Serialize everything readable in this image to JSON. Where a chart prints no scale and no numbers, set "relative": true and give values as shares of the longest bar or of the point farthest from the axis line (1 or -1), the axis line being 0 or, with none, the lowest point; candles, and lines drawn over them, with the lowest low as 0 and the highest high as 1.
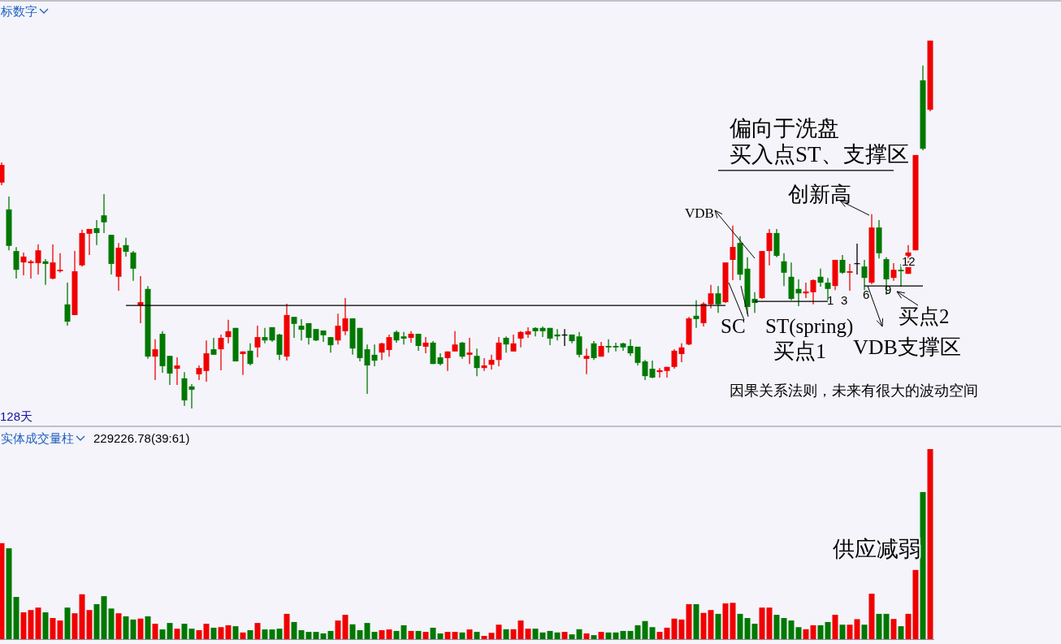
{
  "chart_data": [
    {
      "type": "candlestick",
      "relative": true,
      "title": "标数字",
      "annotations": [
        "偏向于洗盘",
        "买入点ST、支撑区",
        "创新高",
        "VDB",
        "SC",
        "ST(spring)",
        "买点1",
        "VDB支撑区",
        "买点2",
        "1",
        "3",
        "6",
        "9",
        "12",
        "因果关系法则，未来有很大的波动空间",
        "128天"
      ],
      "categories": [
        null,
        null,
        null,
        null,
        null,
        null,
        null,
        null,
        null,
        null,
        null,
        null,
        null,
        null,
        null,
        null,
        null,
        null,
        null,
        null,
        null,
        null,
        null,
        null,
        null,
        null,
        null,
        null,
        null,
        null,
        null,
        null,
        null,
        null,
        null,
        null,
        null,
        null,
        null,
        null,
        null,
        null,
        null,
        null,
        null,
        null,
        null,
        null,
        null,
        null,
        null,
        null,
        null,
        null,
        null,
        null,
        null,
        null,
        null,
        null,
        null,
        null,
        null,
        null,
        null,
        null,
        null,
        null,
        null,
        null,
        null,
        null,
        null,
        null,
        null,
        null,
        null,
        null,
        null,
        null,
        null,
        null,
        null,
        null,
        null,
        null,
        null,
        null,
        null,
        null,
        null,
        null,
        null,
        null,
        null,
        null,
        null,
        null,
        null,
        null,
        null,
        null,
        null,
        null,
        null,
        null,
        null,
        null,
        null,
        null,
        null,
        null,
        null,
        null,
        null,
        null,
        null,
        null,
        null,
        null,
        null,
        null,
        null,
        null,
        null,
        null,
        null,
        null
      ],
      "ohlc": [
        [
          0.614,
          0.669,
          0.607,
          0.662
        ],
        [
          0.541,
          0.576,
          0.43,
          0.442
        ],
        [
          0.428,
          0.439,
          0.353,
          0.377
        ],
        [
          0.397,
          0.424,
          0.362,
          0.413
        ],
        [
          0.395,
          0.404,
          0.353,
          0.4
        ],
        [
          0.395,
          0.446,
          0.364,
          0.43
        ],
        [
          0.4,
          0.406,
          0.336,
          0.393
        ],
        [
          0.353,
          0.446,
          0.351,
          0.397
        ],
        [
          0.373,
          0.422,
          0.369,
          0.377
        ],
        [
          0.283,
          0.342,
          0.225,
          0.236
        ],
        [
          0.254,
          0.428,
          0.254,
          0.373
        ],
        [
          0.389,
          0.486,
          0.386,
          0.477
        ],
        [
          0.475,
          0.488,
          0.417,
          0.488
        ],
        [
          0.49,
          0.512,
          0.444,
          0.477
        ],
        [
          0.525,
          0.583,
          0.477,
          0.506
        ],
        [
          0.472,
          0.472,
          0.364,
          0.393
        ],
        [
          0.358,
          0.45,
          0.32,
          0.437
        ],
        [
          0.444,
          0.464,
          0.413,
          0.426
        ],
        [
          0.424,
          0.428,
          0.347,
          0.38
        ],
        [
          0.28,
          0.36,
          0.232,
          0.289
        ],
        [
          0.325,
          0.333,
          0.135,
          0.141
        ],
        [
          0.141,
          0.188,
          0.077,
          0.161
        ],
        [
          0.203,
          0.21,
          0.097,
          0.115
        ],
        [
          0.143,
          0.143,
          0.064,
          0.095
        ],
        [
          0.108,
          0.139,
          0.064,
          0.117
        ],
        [
          0.082,
          0.099,
          0.007,
          0.022
        ],
        [
          0.06,
          0.066,
          0,
          0.051
        ],
        [
          0.093,
          0.117,
          0.077,
          0.11
        ],
        [
          0.102,
          0.185,
          0.073,
          0.15
        ],
        [
          0.161,
          0.192,
          0.146,
          0.146
        ],
        [
          0.161,
          0.201,
          0.104,
          0.192
        ],
        [
          0.194,
          0.241,
          0.177,
          0.21
        ],
        [
          0.219,
          0.219,
          0.128,
          0.128
        ],
        [
          0.148,
          0.155,
          0.091,
          0.155
        ],
        [
          0.157,
          0.177,
          0.117,
          0.121
        ],
        [
          0.166,
          0.225,
          0.139,
          0.194
        ],
        [
          0.194,
          0.219,
          0.177,
          0.185
        ],
        [
          0.221,
          0.221,
          0.181,
          0.185
        ],
        [
          0.201,
          0.203,
          0.132,
          0.146
        ],
        [
          0.141,
          0.285,
          0.13,
          0.254
        ],
        [
          0.249,
          0.249,
          0.192,
          0.23
        ],
        [
          0.225,
          0.243,
          0.185,
          0.214
        ],
        [
          0.232,
          0.232,
          0.174,
          0.192
        ],
        [
          0.216,
          0.216,
          0.183,
          0.185
        ],
        [
          0.212,
          0.212,
          0.181,
          0.199
        ],
        [
          0.194,
          0.194,
          0.152,
          0.172
        ],
        [
          0.185,
          0.258,
          0.174,
          0.225
        ],
        [
          0.21,
          0.3,
          0.199,
          0.245
        ],
        [
          0.245,
          0.245,
          0.146,
          0.163
        ],
        [
          0.219,
          0.219,
          0.128,
          0.137
        ],
        [
          0.161,
          0.174,
          0.04,
          0.117
        ],
        [
          0.146,
          0.174,
          0.115,
          0.13
        ],
        [
          0.152,
          0.179,
          0.132,
          0.177
        ],
        [
          0.159,
          0.201,
          0.141,
          0.194
        ],
        [
          0.208,
          0.212,
          0.179,
          0.185
        ],
        [
          0.196,
          0.208,
          0.174,
          0.19
        ],
        [
          0.192,
          0.21,
          0.179,
          0.203
        ],
        [
          0.203,
          0.203,
          0.157,
          0.17
        ],
        [
          0.168,
          0.194,
          0.15,
          0.179
        ],
        [
          0.179,
          0.183,
          0.121,
          0.121
        ],
        [
          0.139,
          0.15,
          0.117,
          0.121
        ],
        [
          0.137,
          0.155,
          0.102,
          0.155
        ],
        [
          0.155,
          0.21,
          0.155,
          0.174
        ],
        [
          0.179,
          0.181,
          0.135,
          0.141
        ],
        [
          0.146,
          0.192,
          0.121,
          0.152
        ],
        [
          0.143,
          0.163,
          0.088,
          0.11
        ],
        [
          0.11,
          0.137,
          0.102,
          0.117
        ],
        [
          0.119,
          0.146,
          0.106,
          0.132
        ],
        [
          0.132,
          0.194,
          0.115,
          0.179
        ],
        [
          0.192,
          0.196,
          0.152,
          0.174
        ],
        [
          0.155,
          0.201,
          0.155,
          0.177
        ],
        [
          0.19,
          0.21,
          0.166,
          0.208
        ],
        [
          0.201,
          0.221,
          0.192,
          0.21
        ],
        [
          0.219,
          0.221,
          0.196,
          0.21
        ],
        [
          0.219,
          0.223,
          0.194,
          0.21
        ],
        [
          0.219,
          0.219,
          0.172,
          0.19
        ],
        [
          0.201,
          0.216,
          0.185,
          0.196
        ],
        [
          0.201,
          0.216,
          0.17,
          0.201
        ],
        [
          0.201,
          0.201,
          0.177,
          0.183
        ],
        [
          0.196,
          0.208,
          0.139,
          0.146
        ],
        [
          0.135,
          0.163,
          0.093,
          0.143
        ],
        [
          0.177,
          0.183,
          0.132,
          0.137
        ],
        [
          0.141,
          0.181,
          0.141,
          0.17
        ],
        [
          0.17,
          0.188,
          0.152,
          0.166
        ],
        [
          0.17,
          0.179,
          0.155,
          0.166
        ],
        [
          0.177,
          0.179,
          0.157,
          0.166
        ],
        [
          0.17,
          0.188,
          0.143,
          0.15
        ],
        [
          0.168,
          0.168,
          0.117,
          0.124
        ],
        [
          0.128,
          0.132,
          0.077,
          0.088
        ],
        [
          0.108,
          0.13,
          0.082,
          0.084
        ],
        [
          0.099,
          0.11,
          0.084,
          0.104
        ],
        [
          0.102,
          0.113,
          0.084,
          0.113
        ],
        [
          0.113,
          0.161,
          0.108,
          0.157
        ],
        [
          0.148,
          0.177,
          0.126,
          0.166
        ],
        [
          0.174,
          0.249,
          0.172,
          0.245
        ],
        [
          0.252,
          0.294,
          0.219,
          0.243
        ],
        [
          0.232,
          0.289,
          0.223,
          0.285
        ],
        [
          0.283,
          0.336,
          0.272,
          0.313
        ],
        [
          0.313,
          0.333,
          0.26,
          0.283
        ],
        [
          0.289,
          0.397,
          0.287,
          0.397
        ],
        [
          0.404,
          0.497,
          0.349,
          0.439
        ],
        [
          0.45,
          0.468,
          0.349,
          0.364
        ],
        [
          0.38,
          0.411,
          0.256,
          0.276
        ],
        [
          0.298,
          0.316,
          0.26,
          0.287
        ],
        [
          0.3,
          0.428,
          0.298,
          0.428
        ],
        [
          0.428,
          0.488,
          0.389,
          0.477
        ],
        [
          0.477,
          0.488,
          0.411,
          0.415
        ],
        [
          0.4,
          0.422,
          0.333,
          0.369
        ],
        [
          0.358,
          0.397,
          0.294,
          0.298
        ],
        [
          0.325,
          0.351,
          0.278,
          0.313
        ],
        [
          0.313,
          0.342,
          0.3,
          0.318
        ],
        [
          0.316,
          0.351,
          0.283,
          0.349
        ],
        [
          0.358,
          0.38,
          0.331,
          0.342
        ],
        [
          0.342,
          0.355,
          0.294,
          0.325
        ],
        [
          0.333,
          0.404,
          0.322,
          0.404
        ],
        [
          0.404,
          0.417,
          0.366,
          0.369
        ],
        [
          0.369,
          0.393,
          0.32,
          0.373
        ],
        [
          0.395,
          0.448,
          0.364,
          0.395
        ],
        [
          0.386,
          0.404,
          0.322,
          0.355
        ],
        [
          0.342,
          0.528,
          0.338,
          0.492
        ],
        [
          0.492,
          0.512,
          0.408,
          0.422
        ],
        [
          0.406,
          0.411,
          0.309,
          0.351
        ],
        [
          0.355,
          0.395,
          0.347,
          0.377
        ],
        [
          0.377,
          0.393,
          0.331,
          0.373
        ],
        [
          0.366,
          0.444,
          0.366,
          0.424
        ],
        [
          0.43,
          0.689,
          0.43,
          0.689
        ],
        [
          0.892,
          0.932,
          0.702,
          0.706
        ],
        [
          0.812,
          1,
          0.808,
          1
        ]
      ],
      "series": [
        {
          "type": "line",
          "color": "#000000",
          "values": [
            null,
            null,
            null,
            null,
            null,
            null,
            null,
            null,
            null,
            null,
            null,
            null,
            null,
            null,
            null,
            null,
            null,
            0.28,
            0.28,
            0.28,
            0.28,
            0.28,
            0.28,
            0.28,
            0.28,
            0.28,
            0.28,
            0.28,
            0.28,
            0.28,
            0.28,
            0.28,
            0.28,
            0.28,
            0.28,
            0.28,
            0.28,
            0.28,
            0.28,
            0.28,
            0.28,
            0.28,
            0.28,
            0.28,
            0.28,
            0.28,
            0.28,
            0.28,
            0.28,
            0.28,
            0.28,
            0.28,
            0.28,
            0.28,
            0.28,
            0.28,
            0.28,
            0.28,
            0.28,
            0.28,
            0.28,
            0.28,
            0.28,
            0.28,
            0.28,
            0.28,
            0.28,
            0.28,
            0.28,
            0.28,
            0.28,
            0.28,
            0.28,
            0.28,
            0.28,
            0.28,
            0.28,
            0.28,
            0.28,
            0.28,
            0.28,
            0.28,
            0.28,
            0.28,
            0.28,
            0.28,
            0.28,
            0.28,
            0.28,
            0.28,
            0.28,
            0.28,
            0.28,
            0.28,
            0.28,
            0.28,
            0.28,
            0.28,
            0.28,
            0.28,
            null,
            null,
            null,
            null,
            null,
            null,
            null,
            null,
            null,
            null,
            null,
            null,
            null,
            null,
            null,
            null,
            null,
            null,
            null,
            null,
            null,
            null,
            null,
            null,
            null,
            null,
            null,
            null
          ]
        },
        {
          "type": "line",
          "color": "#000000",
          "values": [
            null,
            null,
            null,
            null,
            null,
            null,
            null,
            null,
            null,
            null,
            null,
            null,
            null,
            null,
            null,
            null,
            null,
            null,
            null,
            null,
            null,
            null,
            null,
            null,
            null,
            null,
            null,
            null,
            null,
            null,
            null,
            null,
            null,
            null,
            null,
            null,
            null,
            null,
            null,
            null,
            null,
            null,
            null,
            null,
            null,
            null,
            null,
            null,
            null,
            null,
            null,
            null,
            null,
            null,
            null,
            null,
            null,
            null,
            null,
            null,
            null,
            null,
            null,
            null,
            null,
            null,
            null,
            null,
            null,
            null,
            null,
            null,
            null,
            null,
            null,
            null,
            null,
            null,
            null,
            null,
            null,
            null,
            null,
            null,
            null,
            null,
            null,
            null,
            null,
            null,
            null,
            null,
            null,
            null,
            null,
            null,
            null,
            null,
            0.647,
            0.647,
            0.647,
            0.647,
            0.647,
            0.647,
            0.647,
            0.647,
            0.647,
            0.647,
            0.647,
            0.647,
            0.647,
            0.647,
            0.647,
            0.647,
            0.647,
            0.647,
            0.647,
            0.647,
            0.647,
            0.647,
            0.647,
            0.647,
            0.647,
            null,
            null,
            null,
            null,
            null
          ]
        },
        {
          "type": "line",
          "color": "#000000",
          "values": [
            null,
            null,
            null,
            null,
            null,
            null,
            null,
            null,
            null,
            null,
            null,
            null,
            null,
            null,
            null,
            null,
            null,
            null,
            null,
            null,
            null,
            null,
            null,
            null,
            null,
            null,
            null,
            null,
            null,
            null,
            null,
            null,
            null,
            null,
            null,
            null,
            null,
            null,
            null,
            null,
            null,
            null,
            null,
            null,
            null,
            null,
            null,
            null,
            null,
            null,
            null,
            null,
            null,
            null,
            null,
            null,
            null,
            null,
            null,
            null,
            null,
            null,
            null,
            null,
            null,
            null,
            null,
            null,
            null,
            null,
            null,
            null,
            null,
            null,
            null,
            null,
            null,
            null,
            null,
            null,
            null,
            null,
            null,
            null,
            null,
            null,
            null,
            null,
            null,
            null,
            null,
            null,
            null,
            null,
            null,
            null,
            null,
            null,
            null,
            null,
            null,
            null,
            null,
            0.291,
            0.291,
            0.291,
            0.291,
            0.291,
            0.291,
            0.291,
            0.291,
            0.291,
            0.291,
            0.291,
            null,
            null,
            null,
            null,
            null,
            null,
            null,
            null,
            null,
            null,
            null,
            null,
            null,
            null
          ]
        },
        {
          "type": "line",
          "color": "#000000",
          "values": [
            null,
            null,
            null,
            null,
            null,
            null,
            null,
            null,
            null,
            null,
            null,
            null,
            null,
            null,
            null,
            null,
            null,
            null,
            null,
            null,
            null,
            null,
            null,
            null,
            null,
            null,
            null,
            null,
            null,
            null,
            null,
            null,
            null,
            null,
            null,
            null,
            null,
            null,
            null,
            null,
            null,
            null,
            null,
            null,
            null,
            null,
            null,
            null,
            null,
            null,
            null,
            null,
            null,
            null,
            null,
            null,
            null,
            null,
            null,
            null,
            null,
            null,
            null,
            null,
            null,
            null,
            null,
            null,
            null,
            null,
            null,
            null,
            null,
            null,
            null,
            null,
            null,
            null,
            null,
            null,
            null,
            null,
            null,
            null,
            null,
            null,
            null,
            null,
            null,
            null,
            null,
            null,
            null,
            null,
            null,
            null,
            null,
            null,
            null,
            null,
            null,
            null,
            null,
            null,
            null,
            null,
            null,
            null,
            null,
            null,
            null,
            null,
            null,
            null,
            null,
            null,
            null,
            null,
            0.333,
            0.333,
            0.333,
            0.333,
            0.333,
            0.333,
            0.333,
            0.333,
            0.333,
            null
          ]
        }
      ]
    },
    {
      "type": "bar",
      "relative": true,
      "title": "实体成交量柱",
      "subtitle": "229226.78(39:61)",
      "annotations": [
        "供应减弱"
      ],
      "categories": [
        null,
        null,
        null,
        null,
        null,
        null,
        null,
        null,
        null,
        null,
        null,
        null,
        null,
        null,
        null,
        null,
        null,
        null,
        null,
        null,
        null,
        null,
        null,
        null,
        null,
        null,
        null,
        null,
        null,
        null,
        null,
        null,
        null,
        null,
        null,
        null,
        null,
        null,
        null,
        null,
        null,
        null,
        null,
        null,
        null,
        null,
        null,
        null,
        null,
        null,
        null,
        null,
        null,
        null,
        null,
        null,
        null,
        null,
        null,
        null,
        null,
        null,
        null,
        null,
        null,
        null,
        null,
        null,
        null,
        null,
        null,
        null,
        null,
        null,
        null,
        null,
        null,
        null,
        null,
        null,
        null,
        null,
        null,
        null,
        null,
        null,
        null,
        null,
        null,
        null,
        null,
        null,
        null,
        null,
        null,
        null,
        null,
        null,
        null,
        null,
        null,
        null,
        null,
        null,
        null,
        null,
        null,
        null,
        null,
        null,
        null,
        null,
        null,
        null,
        null,
        null,
        null,
        null,
        null,
        null,
        null,
        null,
        null,
        null,
        null,
        null,
        null,
        null
      ],
      "values": [
        0.505,
        0.478,
        0.222,
        0.141,
        0.153,
        0.166,
        0.141,
        0.111,
        0.098,
        0.166,
        0.136,
        0.236,
        0.153,
        0.184,
        0.226,
        0.161,
        0.136,
        0.12,
        0.103,
        0.108,
        0.12,
        0.081,
        0.051,
        0.085,
        0.055,
        0.081,
        0.055,
        0.047,
        0.081,
        0.06,
        0.063,
        0.073,
        0.068,
        0.035,
        0.047,
        0.085,
        0.051,
        0.051,
        0.055,
        0.133,
        0.09,
        0.047,
        0.038,
        0.038,
        0.03,
        0.043,
        0.098,
        0.128,
        0.078,
        0.047,
        0.085,
        0.038,
        0.047,
        0.051,
        0.043,
        0.073,
        0.043,
        0.043,
        0.038,
        0.06,
        0.03,
        0.038,
        0.038,
        0.035,
        0.051,
        0.038,
        0.017,
        0.033,
        0.076,
        0.052,
        0.052,
        0.098,
        0.055,
        0.055,
        0.035,
        0.043,
        0.035,
        0.038,
        0.025,
        0.052,
        0.03,
        0.021,
        0.038,
        0.035,
        0.035,
        0.043,
        0.043,
        0.073,
        0.095,
        0.063,
        0.038,
        0.06,
        0.108,
        0.103,
        0.184,
        0.184,
        0.138,
        0.153,
        0.133,
        0.188,
        0.191,
        0.133,
        0.111,
        0.081,
        0.166,
        0.166,
        0.128,
        0.111,
        0.098,
        0.063,
        0.052,
        0.073,
        0.073,
        0.09,
        0.128,
        0.076,
        0.076,
        0.105,
        0.076,
        0.239,
        0.133,
        0.133,
        0.106,
        0.068,
        0.133,
        0.364,
        0.774,
        1.0
      ],
      "colors": [
        "#f00000",
        "#007800",
        "#007800",
        "#f00000",
        "#f00000",
        "#f00000",
        "#007800",
        "#f00000",
        "#f00000",
        "#007800",
        "#f00000",
        "#f00000",
        "#f00000",
        "#007800",
        "#007800",
        "#007800",
        "#f00000",
        "#007800",
        "#007800",
        "#f00000",
        "#007800",
        "#f00000",
        "#007800",
        "#007800",
        "#f00000",
        "#007800",
        "#007800",
        "#f00000",
        "#f00000",
        "#007800",
        "#f00000",
        "#f00000",
        "#007800",
        "#f00000",
        "#007800",
        "#f00000",
        "#007800",
        "#007800",
        "#007800",
        "#f00000",
        "#007800",
        "#007800",
        "#007800",
        "#007800",
        "#007800",
        "#007800",
        "#f00000",
        "#f00000",
        "#007800",
        "#007800",
        "#007800",
        "#007800",
        "#f00000",
        "#f00000",
        "#007800",
        "#007800",
        "#f00000",
        "#007800",
        "#f00000",
        "#007800",
        "#007800",
        "#f00000",
        "#f00000",
        "#007800",
        "#f00000",
        "#007800",
        "#f00000",
        "#f00000",
        "#f00000",
        "#007800",
        "#f00000",
        "#f00000",
        "#f00000",
        "#007800",
        "#007800",
        "#007800",
        "#007800",
        "#f00000",
        "#007800",
        "#007800",
        "#f00000",
        "#007800",
        "#f00000",
        "#007800",
        "#007800",
        "#007800",
        "#007800",
        "#007800",
        "#007800",
        "#007800",
        "#f00000",
        "#f00000",
        "#f00000",
        "#f00000",
        "#f00000",
        "#007800",
        "#f00000",
        "#f00000",
        "#007800",
        "#f00000",
        "#f00000",
        "#007800",
        "#007800",
        "#007800",
        "#f00000",
        "#f00000",
        "#007800",
        "#007800",
        "#007800",
        "#007800",
        "#f00000",
        "#f00000",
        "#007800",
        "#007800",
        "#f00000",
        "#007800",
        "#f00000",
        "#f00000",
        "#007800",
        "#f00000",
        "#007800",
        "#007800",
        "#f00000",
        "#007800",
        "#f00000",
        "#f00000",
        "#007800",
        "#f00000"
      ]
    }
  ]
}
